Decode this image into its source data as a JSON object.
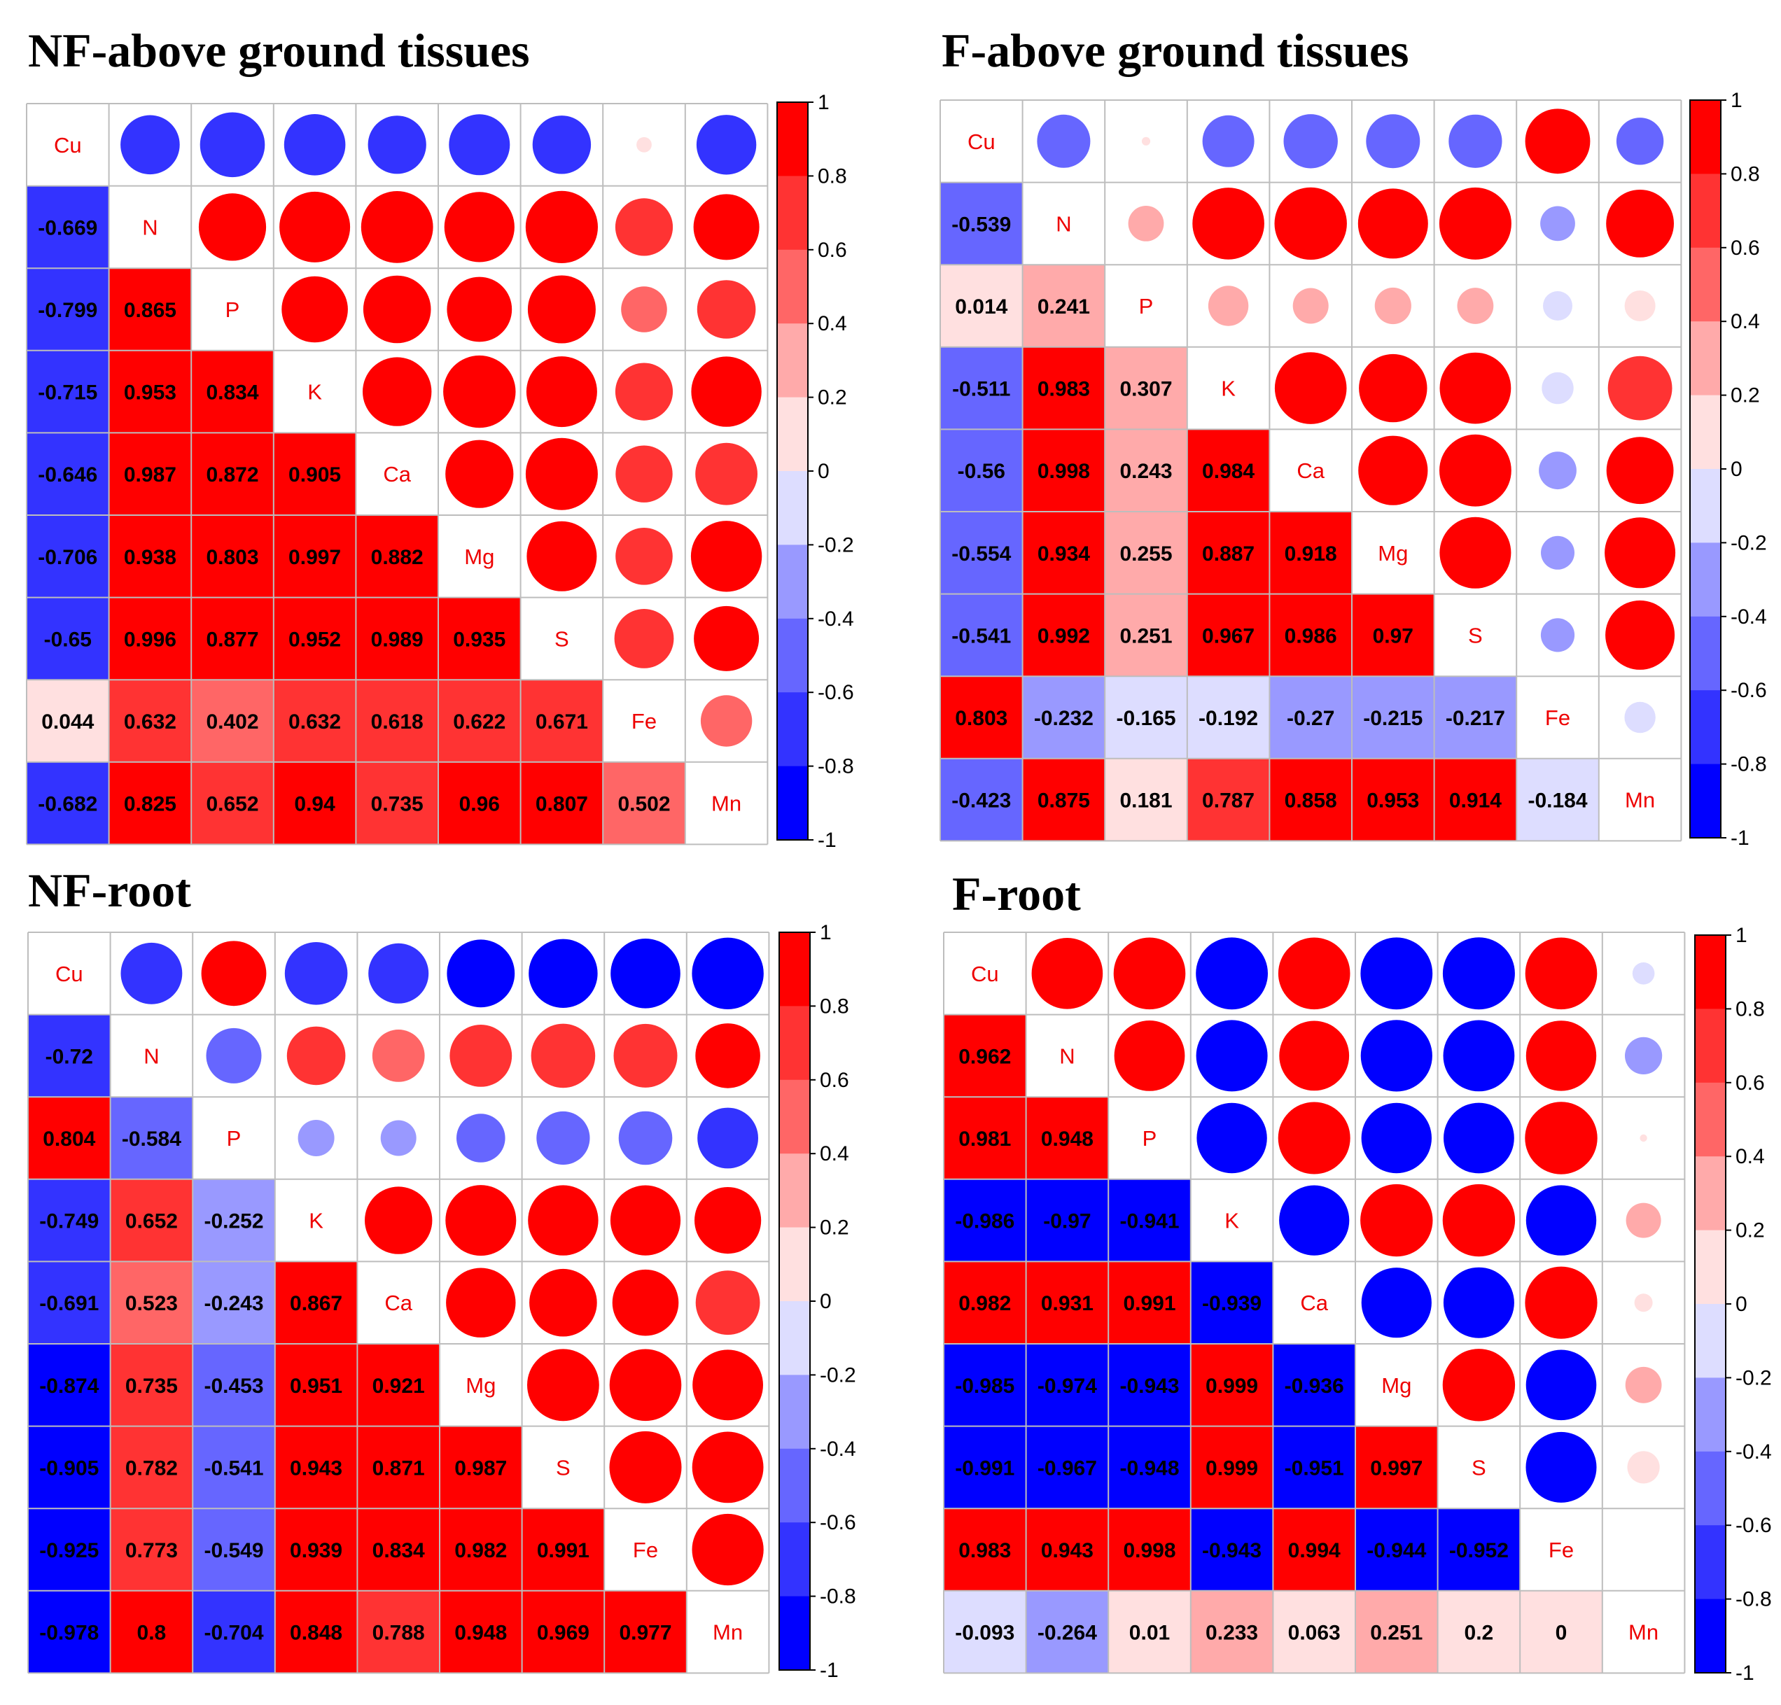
{
  "chart_data": [
    {
      "type": "heatmap",
      "title": "NF-above ground tissues",
      "variables": [
        "Cu",
        "N",
        "P",
        "K",
        "Ca",
        "Mg",
        "S",
        "Fe",
        "Mn"
      ],
      "lower_values": [
        [],
        [
          "-0.669"
        ],
        [
          "-0.799",
          "0.865"
        ],
        [
          "-0.715",
          "0.953",
          "0.834"
        ],
        [
          "-0.646",
          "0.987",
          "0.872",
          "0.905"
        ],
        [
          "-0.706",
          "0.938",
          "0.803",
          "0.997",
          "0.882"
        ],
        [
          "-0.65",
          "0.996",
          "0.877",
          "0.952",
          "0.989",
          "0.935"
        ],
        [
          "0.044",
          "0.632",
          "0.402",
          "0.632",
          "0.618",
          "0.622",
          "0.671"
        ],
        [
          "-0.682",
          "0.825",
          "0.652",
          "0.94",
          "0.735",
          "0.96",
          "0.807",
          "0.502"
        ]
      ],
      "colorbar_ticks": [
        "1",
        "0.8",
        "0.6",
        "0.4",
        "0.2",
        "0",
        "-0.2",
        "-0.4",
        "-0.6",
        "-0.8",
        "-1"
      ]
    },
    {
      "type": "heatmap",
      "title": "F-above ground tissues",
      "variables": [
        "Cu",
        "N",
        "P",
        "K",
        "Ca",
        "Mg",
        "S",
        "Fe",
        "Mn"
      ],
      "lower_values": [
        [],
        [
          "-0.539"
        ],
        [
          "0.014",
          "0.241"
        ],
        [
          "-0.511",
          "0.983",
          "0.307"
        ],
        [
          "-0.56",
          "0.998",
          "0.243",
          "0.984"
        ],
        [
          "-0.554",
          "0.934",
          "0.255",
          "0.887",
          "0.918"
        ],
        [
          "-0.541",
          "0.992",
          "0.251",
          "0.967",
          "0.986",
          "0.97"
        ],
        [
          "0.803",
          "-0.232",
          "-0.165",
          "-0.192",
          "-0.27",
          "-0.215",
          "-0.217"
        ],
        [
          "-0.423",
          "0.875",
          "0.181",
          "0.787",
          "0.858",
          "0.953",
          "0.914",
          "-0.184"
        ]
      ],
      "colorbar_ticks": [
        "1",
        "0.8",
        "0.6",
        "0.4",
        "0.2",
        "0",
        "-0.2",
        "-0.4",
        "-0.6",
        "-0.8",
        "-1"
      ]
    },
    {
      "type": "heatmap",
      "title": "NF-root",
      "variables": [
        "Cu",
        "N",
        "P",
        "K",
        "Ca",
        "Mg",
        "S",
        "Fe",
        "Mn"
      ],
      "lower_values": [
        [],
        [
          "-0.72"
        ],
        [
          "0.804",
          "-0.584"
        ],
        [
          "-0.749",
          "0.652",
          "-0.252"
        ],
        [
          "-0.691",
          "0.523",
          "-0.243",
          "0.867"
        ],
        [
          "-0.874",
          "0.735",
          "-0.453",
          "0.951",
          "0.921"
        ],
        [
          "-0.905",
          "0.782",
          "-0.541",
          "0.943",
          "0.871",
          "0.987"
        ],
        [
          "-0.925",
          "0.773",
          "-0.549",
          "0.939",
          "0.834",
          "0.982",
          "0.991"
        ],
        [
          "-0.978",
          "0.8",
          "-0.704",
          "0.848",
          "0.788",
          "0.948",
          "0.969",
          "0.977"
        ]
      ],
      "colorbar_ticks": [
        "1",
        "0.8",
        "0.6",
        "0.4",
        "0.2",
        "0",
        "-0.2",
        "-0.4",
        "-0.6",
        "-0.8",
        "-1"
      ]
    },
    {
      "type": "heatmap",
      "title": "F-root",
      "variables": [
        "Cu",
        "N",
        "P",
        "K",
        "Ca",
        "Mg",
        "S",
        "Fe",
        "Mn"
      ],
      "lower_values": [
        [],
        [
          "0.962"
        ],
        [
          "0.981",
          "0.948"
        ],
        [
          "-0.986",
          "-0.97",
          "-0.941"
        ],
        [
          "0.982",
          "0.931",
          "0.991",
          "-0.939"
        ],
        [
          "-0.985",
          "-0.974",
          "-0.943",
          "0.999",
          "-0.936"
        ],
        [
          "-0.991",
          "-0.967",
          "-0.948",
          "0.999",
          "-0.951",
          "0.997"
        ],
        [
          "0.983",
          "0.943",
          "0.998",
          "-0.943",
          "0.994",
          "-0.944",
          "-0.952"
        ],
        [
          "-0.093",
          "-0.264",
          "0.01",
          "0.233",
          "0.063",
          "0.251",
          "0.2",
          "0"
        ]
      ],
      "colorbar_ticks": [
        "1",
        "0.8",
        "0.6",
        "0.4",
        "0.2",
        "0",
        "-0.2",
        "-0.4",
        "-0.6",
        "-0.8",
        "-1"
      ]
    }
  ]
}
